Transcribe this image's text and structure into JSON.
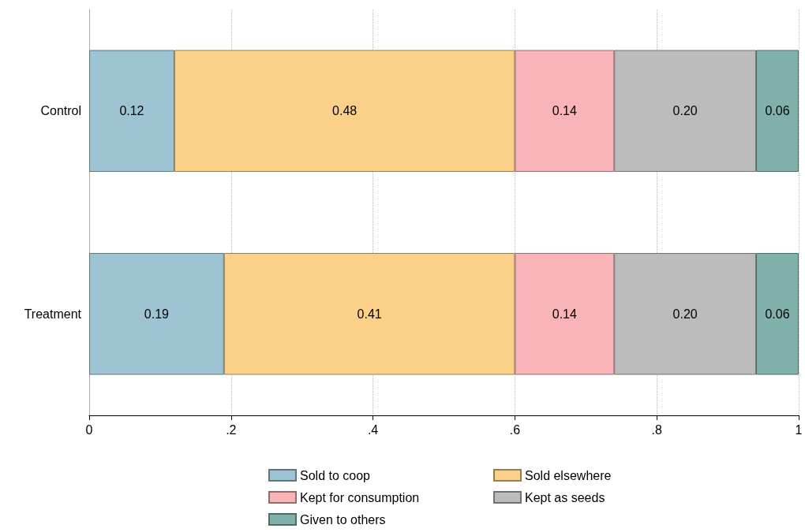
{
  "chart_data": {
    "type": "bar",
    "orientation": "horizontal",
    "stacked": true,
    "categories": [
      "Control",
      "Treatment"
    ],
    "series": [
      {
        "name": "Sold to coop",
        "color": "#9ec3d3",
        "values": [
          0.12,
          0.19
        ],
        "value_labels": [
          "0.12",
          "0.19"
        ]
      },
      {
        "name": "Sold elsewhere",
        "color": "#fbd18a",
        "values": [
          0.48,
          0.41
        ],
        "value_labels": [
          "0.48",
          "0.41"
        ]
      },
      {
        "name": "Kept for consumption",
        "color": "#f8b4b6",
        "values": [
          0.14,
          0.14
        ],
        "value_labels": [
          "0.14",
          "0.14"
        ]
      },
      {
        "name": "Kept as seeds",
        "color": "#bcbcbc",
        "values": [
          0.2,
          0.2
        ],
        "value_labels": [
          "0.20",
          "0.20"
        ]
      },
      {
        "name": "Given to others",
        "color": "#80b2ab",
        "values": [
          0.06,
          0.06
        ],
        "value_labels": [
          "0.06",
          "0.06"
        ]
      }
    ],
    "xlim": [
      0,
      1
    ],
    "xticks": [
      0,
      {
        "value": 0.2,
        "label": ".2"
      },
      {
        "value": 0.4,
        "label": ".4"
      },
      {
        "value": 0.6,
        "label": ".6"
      },
      {
        "value": 0.8,
        "label": ".8"
      },
      1
    ],
    "grid": "x",
    "legend": "bottom"
  }
}
